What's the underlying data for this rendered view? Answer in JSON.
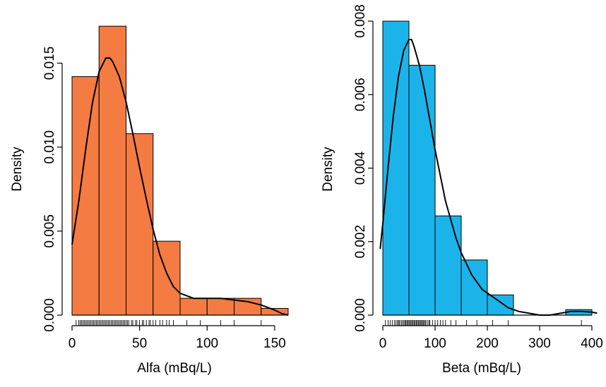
{
  "chart_data": [
    {
      "type": "bar",
      "xlabel": "Alfa (mBq/L)",
      "ylabel": "Density",
      "bar_color": "#F47B42",
      "xlim": [
        0,
        160
      ],
      "ylim": [
        0,
        0.0175
      ],
      "x_ticks": [
        "0",
        "50",
        "100",
        "150"
      ],
      "x_tick_values": [
        0,
        50,
        100,
        150
      ],
      "y_ticks": [
        "0.000",
        "0.005",
        "0.010",
        "0.015"
      ],
      "y_tick_values": [
        0,
        0.005,
        0.01,
        0.015
      ],
      "bins": [
        {
          "start": 0,
          "end": 20,
          "density": 0.0142
        },
        {
          "start": 20,
          "end": 40,
          "density": 0.0172
        },
        {
          "start": 40,
          "end": 60,
          "density": 0.0108
        },
        {
          "start": 60,
          "end": 80,
          "density": 0.0044
        },
        {
          "start": 80,
          "end": 100,
          "density": 0.001
        },
        {
          "start": 100,
          "end": 120,
          "density": 0.001
        },
        {
          "start": 120,
          "end": 140,
          "density": 0.001
        },
        {
          "start": 140,
          "end": 160,
          "density": 0.0004
        }
      ],
      "density_curve": {
        "x": [
          0,
          5,
          10,
          15,
          20,
          25,
          28,
          30,
          35,
          40,
          45,
          50,
          55,
          60,
          65,
          70,
          75,
          80,
          90,
          100,
          110,
          120,
          130,
          140,
          150,
          155,
          160
        ],
        "y": [
          0.0042,
          0.0068,
          0.0098,
          0.0126,
          0.0145,
          0.0153,
          0.0153,
          0.0151,
          0.0142,
          0.0127,
          0.0108,
          0.0088,
          0.0069,
          0.0051,
          0.0036,
          0.0025,
          0.0017,
          0.0013,
          0.001,
          0.001,
          0.001,
          0.0009,
          0.0008,
          0.0006,
          0.0003,
          0.0001,
          0.0
        ]
      },
      "rug": [
        3,
        5,
        6,
        7,
        8,
        9,
        10,
        11,
        12,
        13,
        14,
        15,
        16,
        17,
        18,
        19,
        20,
        21,
        22,
        23,
        24,
        25,
        26,
        27,
        28,
        29,
        30,
        31,
        32,
        33,
        34,
        35,
        36,
        37,
        38,
        39,
        40,
        41,
        42,
        44,
        45,
        47,
        48,
        50,
        52,
        53,
        55,
        57,
        58,
        60,
        62,
        65,
        67,
        70,
        72,
        75,
        85,
        95,
        110,
        120,
        140
      ]
    },
    {
      "type": "bar",
      "xlabel": "Beta (mBq/L)",
      "ylabel": "Density",
      "bar_color": "#1BB4EA",
      "xlim": [
        0,
        400
      ],
      "ylim": [
        0,
        0.008
      ],
      "x_ticks": [
        "0",
        "100",
        "200",
        "300",
        "400"
      ],
      "x_tick_values": [
        0,
        100,
        200,
        300,
        400
      ],
      "y_ticks": [
        "0.000",
        "0.002",
        "0.004",
        "0.006",
        "0.008"
      ],
      "y_tick_values": [
        0,
        0.002,
        0.004,
        0.006,
        0.008
      ],
      "bins": [
        {
          "start": 0,
          "end": 50,
          "density": 0.008
        },
        {
          "start": 50,
          "end": 100,
          "density": 0.0068
        },
        {
          "start": 100,
          "end": 150,
          "density": 0.0027
        },
        {
          "start": 150,
          "end": 200,
          "density": 0.0015
        },
        {
          "start": 200,
          "end": 250,
          "density": 0.00055
        },
        {
          "start": 250,
          "end": 300,
          "density": 0.0
        },
        {
          "start": 300,
          "end": 350,
          "density": 0.0
        },
        {
          "start": 350,
          "end": 400,
          "density": 0.00015
        }
      ],
      "density_curve": {
        "x": [
          -5,
          0,
          10,
          20,
          30,
          40,
          50,
          55,
          60,
          70,
          80,
          90,
          100,
          110,
          120,
          130,
          140,
          150,
          160,
          170,
          180,
          190,
          200,
          220,
          240,
          260,
          280,
          300,
          320,
          340,
          360,
          380,
          400,
          410
        ],
        "y": [
          0.0018,
          0.0025,
          0.004,
          0.0054,
          0.0065,
          0.0072,
          0.0075,
          0.0075,
          0.0073,
          0.0068,
          0.0061,
          0.0053,
          0.0045,
          0.0038,
          0.0031,
          0.0026,
          0.0021,
          0.0017,
          0.0014,
          0.0011,
          0.0009,
          0.0007,
          0.0006,
          0.0004,
          0.0002,
          0.0001,
          5e-05,
          0.0,
          0.0,
          5e-05,
          0.0001,
          0.0001,
          8e-05,
          5e-05
        ]
      },
      "rug": [
        5,
        10,
        14,
        18,
        22,
        25,
        28,
        30,
        32,
        35,
        37,
        40,
        42,
        44,
        46,
        48,
        50,
        52,
        54,
        56,
        58,
        60,
        62,
        64,
        66,
        68,
        70,
        72,
        74,
        76,
        78,
        80,
        82,
        85,
        88,
        90,
        95,
        100,
        105,
        110,
        115,
        120,
        130,
        140,
        160,
        180,
        210,
        240,
        380
      ]
    }
  ]
}
